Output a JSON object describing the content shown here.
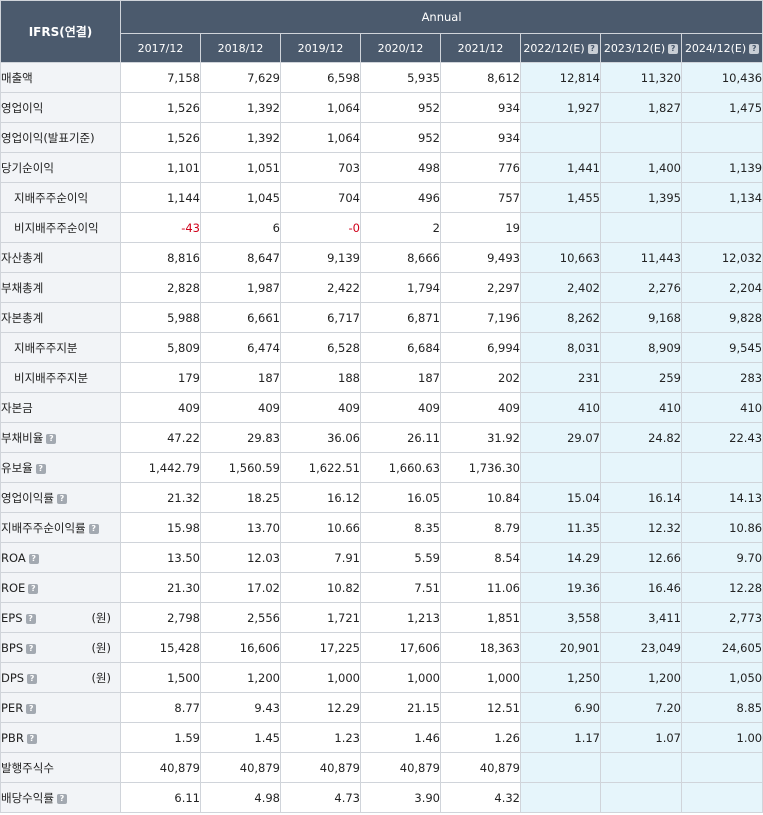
{
  "header": {
    "corner_label": "IFRS(연결)",
    "period_group": "Annual",
    "help_glyph": "?",
    "periods": [
      {
        "label": "2017/12",
        "estimate": false
      },
      {
        "label": "2018/12",
        "estimate": false
      },
      {
        "label": "2019/12",
        "estimate": false
      },
      {
        "label": "2020/12",
        "estimate": false
      },
      {
        "label": "2021/12",
        "estimate": false
      },
      {
        "label": "2022/12(E)",
        "estimate": true
      },
      {
        "label": "2023/12(E)",
        "estimate": true
      },
      {
        "label": "2024/12(E)",
        "estimate": true
      }
    ]
  },
  "rows": [
    {
      "label": "매출액",
      "indent": false,
      "help": false,
      "unit": "",
      "values": [
        "7,158",
        "7,629",
        "6,598",
        "5,935",
        "8,612",
        "12,814",
        "11,320",
        "10,436"
      ]
    },
    {
      "label": "영업이익",
      "indent": false,
      "help": false,
      "unit": "",
      "values": [
        "1,526",
        "1,392",
        "1,064",
        "952",
        "934",
        "1,927",
        "1,827",
        "1,475"
      ]
    },
    {
      "label": "영업이익(발표기준)",
      "indent": false,
      "help": false,
      "unit": "",
      "values": [
        "1,526",
        "1,392",
        "1,064",
        "952",
        "934",
        "",
        "",
        ""
      ]
    },
    {
      "label": "당기순이익",
      "indent": false,
      "help": false,
      "unit": "",
      "values": [
        "1,101",
        "1,051",
        "703",
        "498",
        "776",
        "1,441",
        "1,400",
        "1,139"
      ]
    },
    {
      "label": "지배주주순이익",
      "indent": true,
      "help": false,
      "unit": "",
      "values": [
        "1,144",
        "1,045",
        "704",
        "496",
        "757",
        "1,455",
        "1,395",
        "1,134"
      ]
    },
    {
      "label": "비지배주주순이익",
      "indent": true,
      "help": false,
      "unit": "",
      "values": [
        "-43",
        "6",
        "-0",
        "2",
        "19",
        "",
        "",
        ""
      ]
    },
    {
      "label": "자산총계",
      "indent": false,
      "help": false,
      "unit": "",
      "values": [
        "8,816",
        "8,647",
        "9,139",
        "8,666",
        "9,493",
        "10,663",
        "11,443",
        "12,032"
      ]
    },
    {
      "label": "부채총계",
      "indent": false,
      "help": false,
      "unit": "",
      "values": [
        "2,828",
        "1,987",
        "2,422",
        "1,794",
        "2,297",
        "2,402",
        "2,276",
        "2,204"
      ]
    },
    {
      "label": "자본총계",
      "indent": false,
      "help": false,
      "unit": "",
      "values": [
        "5,988",
        "6,661",
        "6,717",
        "6,871",
        "7,196",
        "8,262",
        "9,168",
        "9,828"
      ]
    },
    {
      "label": "지배주주지분",
      "indent": true,
      "help": false,
      "unit": "",
      "values": [
        "5,809",
        "6,474",
        "6,528",
        "6,684",
        "6,994",
        "8,031",
        "8,909",
        "9,545"
      ]
    },
    {
      "label": "비지배주주지분",
      "indent": true,
      "help": false,
      "unit": "",
      "values": [
        "179",
        "187",
        "188",
        "187",
        "202",
        "231",
        "259",
        "283"
      ]
    },
    {
      "label": "자본금",
      "indent": false,
      "help": false,
      "unit": "",
      "values": [
        "409",
        "409",
        "409",
        "409",
        "409",
        "410",
        "410",
        "410"
      ]
    },
    {
      "label": "부채비율",
      "indent": false,
      "help": true,
      "unit": "",
      "values": [
        "47.22",
        "29.83",
        "36.06",
        "26.11",
        "31.92",
        "29.07",
        "24.82",
        "22.43"
      ]
    },
    {
      "label": "유보율",
      "indent": false,
      "help": true,
      "unit": "",
      "values": [
        "1,442.79",
        "1,560.59",
        "1,622.51",
        "1,660.63",
        "1,736.30",
        "",
        "",
        ""
      ]
    },
    {
      "label": "영업이익률",
      "indent": false,
      "help": true,
      "unit": "",
      "values": [
        "21.32",
        "18.25",
        "16.12",
        "16.05",
        "10.84",
        "15.04",
        "16.14",
        "14.13"
      ]
    },
    {
      "label": "지배주주순이익률",
      "indent": false,
      "help": true,
      "unit": "",
      "values": [
        "15.98",
        "13.70",
        "10.66",
        "8.35",
        "8.79",
        "11.35",
        "12.32",
        "10.86"
      ]
    },
    {
      "label": "ROA",
      "indent": false,
      "help": true,
      "unit": "",
      "values": [
        "13.50",
        "12.03",
        "7.91",
        "5.59",
        "8.54",
        "14.29",
        "12.66",
        "9.70"
      ]
    },
    {
      "label": "ROE",
      "indent": false,
      "help": true,
      "unit": "",
      "values": [
        "21.30",
        "17.02",
        "10.82",
        "7.51",
        "11.06",
        "19.36",
        "16.46",
        "12.28"
      ]
    },
    {
      "label": "EPS",
      "indent": false,
      "help": true,
      "unit": "(원)",
      "values": [
        "2,798",
        "2,556",
        "1,721",
        "1,213",
        "1,851",
        "3,558",
        "3,411",
        "2,773"
      ]
    },
    {
      "label": "BPS",
      "indent": false,
      "help": true,
      "unit": "(원)",
      "values": [
        "15,428",
        "16,606",
        "17,225",
        "17,606",
        "18,363",
        "20,901",
        "23,049",
        "24,605"
      ]
    },
    {
      "label": "DPS",
      "indent": false,
      "help": true,
      "unit": "(원)",
      "values": [
        "1,500",
        "1,200",
        "1,000",
        "1,000",
        "1,000",
        "1,250",
        "1,200",
        "1,050"
      ]
    },
    {
      "label": "PER",
      "indent": false,
      "help": true,
      "unit": "",
      "values": [
        "8.77",
        "9.43",
        "12.29",
        "21.15",
        "12.51",
        "6.90",
        "7.20",
        "8.85"
      ]
    },
    {
      "label": "PBR",
      "indent": false,
      "help": true,
      "unit": "",
      "values": [
        "1.59",
        "1.45",
        "1.23",
        "1.46",
        "1.26",
        "1.17",
        "1.07",
        "1.00"
      ]
    },
    {
      "label": "발행주식수",
      "indent": false,
      "help": false,
      "unit": "",
      "values": [
        "40,879",
        "40,879",
        "40,879",
        "40,879",
        "40,879",
        "",
        "",
        ""
      ]
    },
    {
      "label": "배당수익률",
      "indent": false,
      "help": true,
      "unit": "",
      "values": [
        "6.11",
        "4.98",
        "4.73",
        "3.90",
        "4.32",
        "",
        "",
        ""
      ]
    }
  ],
  "colors": {
    "header_bg": "#4b5a6d",
    "estimate_bg": "#e6f5fb",
    "label_bg": "#f2f4f7",
    "negative": "#d0021b"
  }
}
